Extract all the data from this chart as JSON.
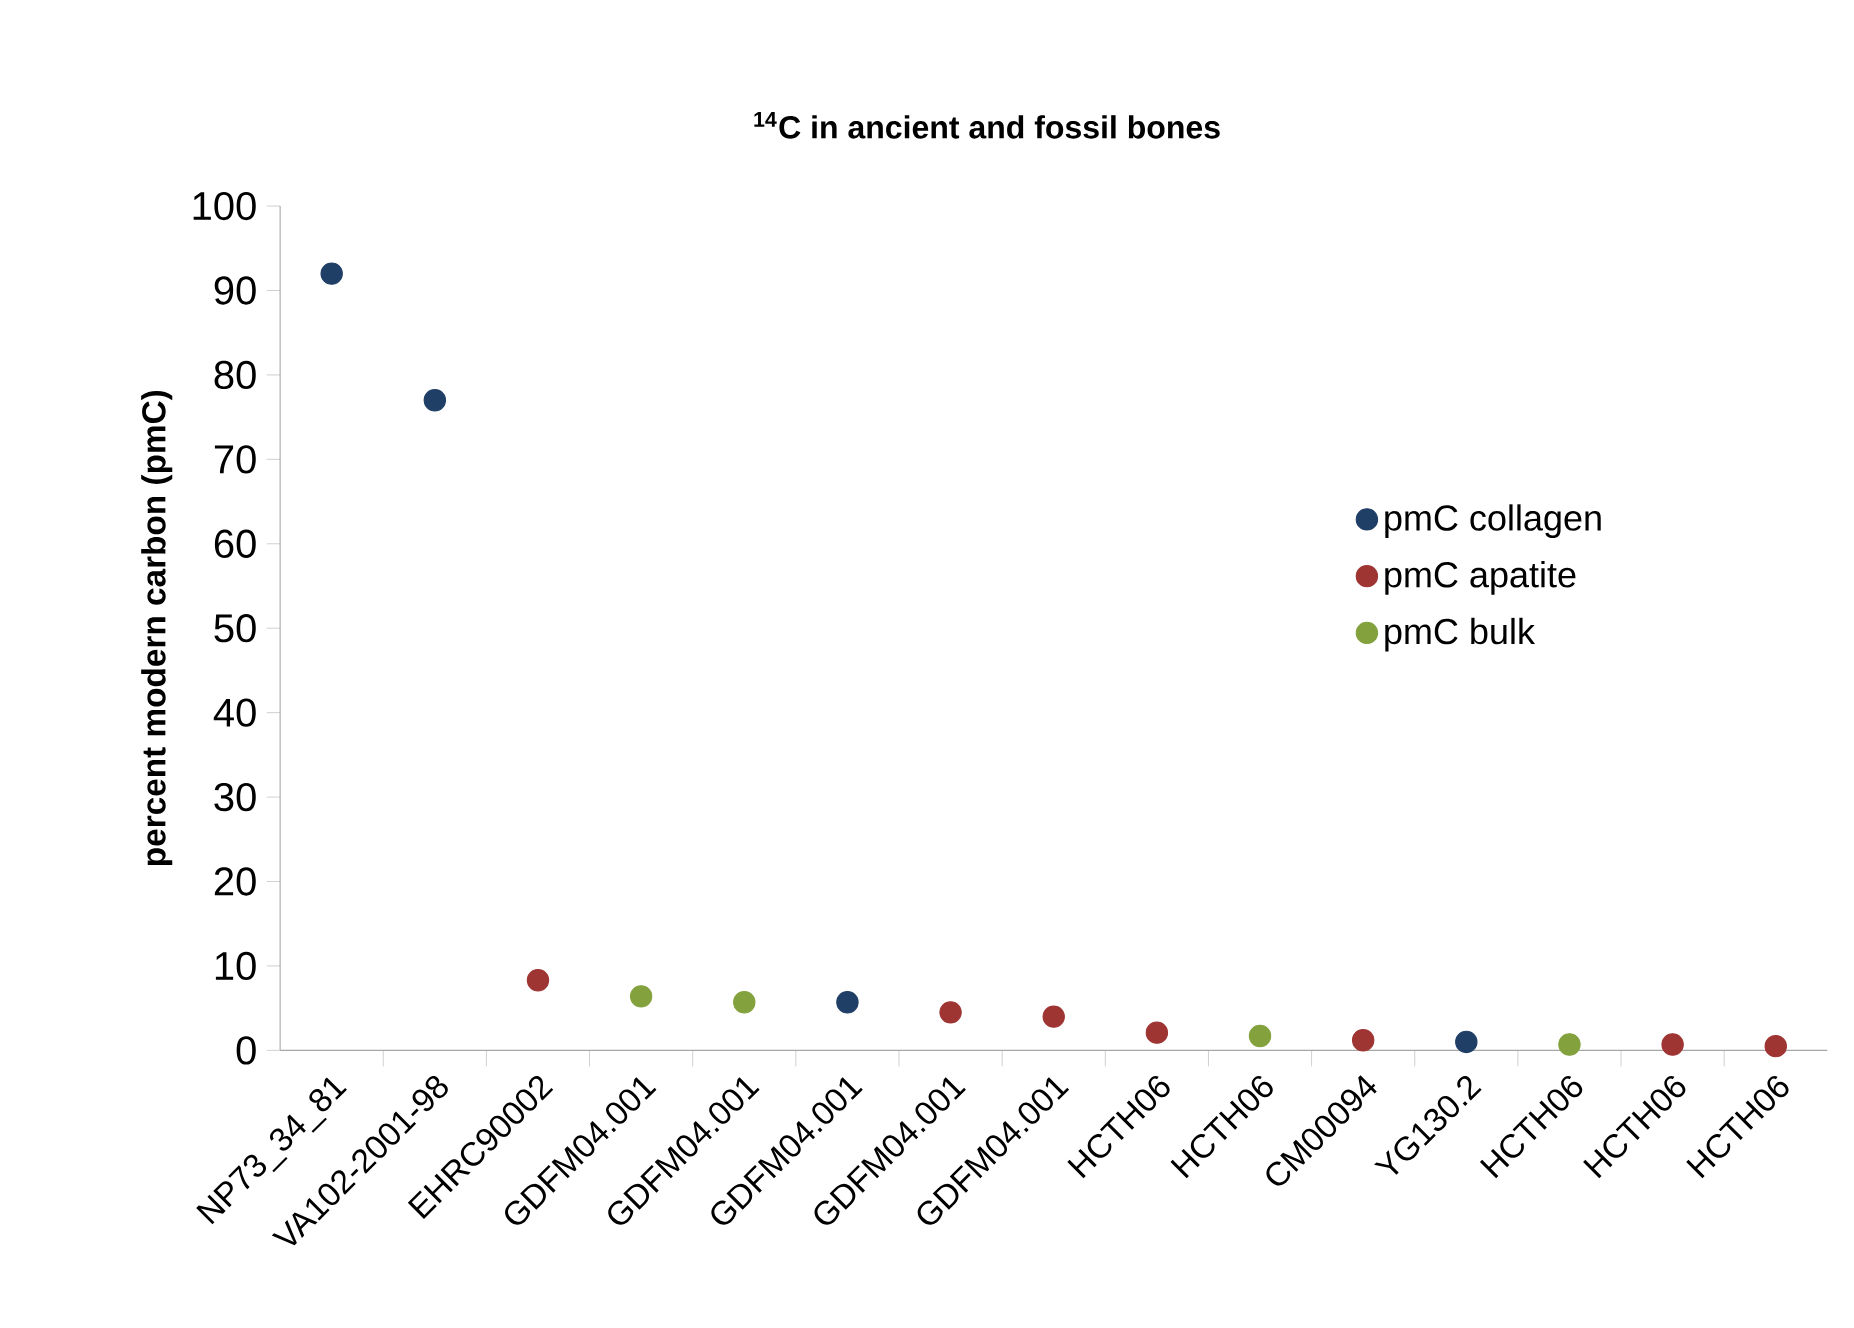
{
  "chart_data": {
    "type": "scatter",
    "title": "$^{14}$C in ancient and fossil bones",
    "ylabel": "percent modern carbon (pmC)",
    "categories": [
      "NP73_34_81",
      "VA102-2001-98",
      "EHRC90002",
      "GDFM04.001",
      "GDFM04.001",
      "GDFM04.001",
      "GDFM04.001",
      "GDFM04.001",
      "HCTH06",
      "HCTH06",
      "CM00094",
      "YG130.2",
      "HCTH06",
      "HCTH06",
      "HCTH06"
    ],
    "series": [
      {
        "name": "pmC collagen",
        "color": "#203f66",
        "values": [
          92,
          77,
          null,
          null,
          null,
          5.7,
          null,
          null,
          null,
          null,
          null,
          1.0,
          null,
          null,
          null
        ]
      },
      {
        "name": "pmC apatite",
        "color": "#9e3533",
        "values": [
          null,
          null,
          8.3,
          null,
          null,
          null,
          4.5,
          4.0,
          2.1,
          null,
          1.2,
          null,
          null,
          0.7,
          0.5
        ]
      },
      {
        "name": "pmC bulk",
        "color": "#83a23e",
        "values": [
          null,
          null,
          null,
          6.4,
          5.7,
          null,
          null,
          null,
          null,
          1.7,
          null,
          null,
          0.7,
          null,
          null
        ]
      }
    ],
    "ylim": [
      0,
      100
    ],
    "yticks": [
      0,
      10,
      20,
      30,
      40,
      50,
      60,
      70,
      80,
      90,
      100
    ],
    "legend": "right",
    "marker": "circle",
    "grid": false
  }
}
